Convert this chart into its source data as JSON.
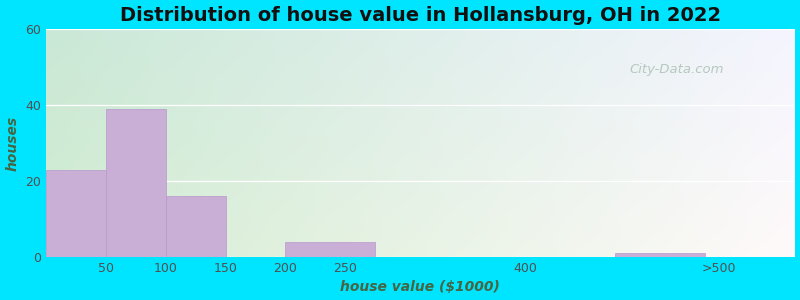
{
  "title": "Distribution of house value in Hollansburg, OH in 2022",
  "xlabel": "house value ($1000)",
  "ylabel": "houses",
  "bar_left_edges": [
    0,
    50,
    100,
    150,
    200,
    350,
    475
  ],
  "bar_widths": [
    50,
    50,
    50,
    50,
    75,
    100,
    75
  ],
  "bar_values": [
    23,
    39,
    16,
    0,
    4,
    0,
    1
  ],
  "xtick_positions": [
    50,
    100,
    150,
    200,
    250,
    400,
    562
  ],
  "xtick_labels": [
    "50",
    "100",
    "150",
    "200",
    "250",
    "400",
    ">500"
  ],
  "bar_color": "#c9aed6",
  "bar_edge_color": "#b898cc",
  "ylim": [
    0,
    60
  ],
  "yticks": [
    0,
    20,
    40,
    60
  ],
  "xlim": [
    0,
    625
  ],
  "background_outer": "#00e5ff",
  "title_fontsize": 14,
  "axis_label_fontsize": 10,
  "tick_fontsize": 9,
  "watermark_text": "City-Data.com",
  "watermark_color": "#b0c4b8",
  "gradient_top": "#e8f5e2",
  "gradient_bottom": "#f5f5dc"
}
